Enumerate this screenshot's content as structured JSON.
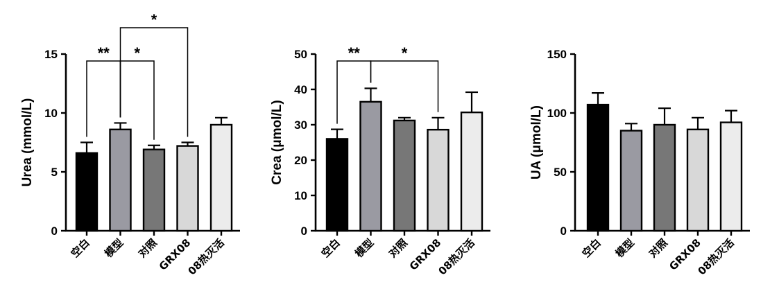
{
  "chart_data": [
    {
      "type": "bar",
      "ylabel": "Urea (mmol/L)",
      "categories": [
        "空白",
        "模型",
        "对照",
        "GRX08",
        "08热灭活"
      ],
      "values": [
        6.6,
        8.6,
        6.9,
        7.2,
        9.0
      ],
      "errors": [
        0.9,
        0.55,
        0.35,
        0.3,
        0.6
      ],
      "colors": [
        "#000000",
        "#9a9aa2",
        "#777777",
        "#d8d8d8",
        "#ececec"
      ],
      "ylim": [
        0,
        15
      ],
      "yticks": [
        0,
        5,
        10,
        15
      ],
      "significance": [
        {
          "from": 0,
          "to": 1,
          "label": "**"
        },
        {
          "from": 1,
          "to": 2,
          "label": "*"
        },
        {
          "from": 1,
          "to": 3,
          "label": "*"
        }
      ]
    },
    {
      "type": "bar",
      "ylabel": "Crea (μmol/L)",
      "categories": [
        "空白",
        "模型",
        "对照",
        "GRX08",
        "08热灭活"
      ],
      "values": [
        26.0,
        36.5,
        31.2,
        28.6,
        33.5
      ],
      "errors": [
        2.7,
        3.8,
        0.8,
        3.4,
        5.7
      ],
      "colors": [
        "#000000",
        "#9a9aa2",
        "#777777",
        "#d8d8d8",
        "#ececec"
      ],
      "ylim": [
        0,
        50
      ],
      "yticks": [
        0,
        10,
        20,
        30,
        40,
        50
      ],
      "significance": [
        {
          "from": 0,
          "to": 1,
          "label": "**"
        },
        {
          "from": 1,
          "to": 3,
          "label": "*"
        }
      ]
    },
    {
      "type": "bar",
      "ylabel": "UA (μmol/L)",
      "categories": [
        "空白",
        "模型",
        "对照",
        "GRX08",
        "08热灭活"
      ],
      "values": [
        107,
        85,
        90,
        86,
        92
      ],
      "errors": [
        10,
        6,
        14,
        10,
        10
      ],
      "colors": [
        "#000000",
        "#9a9aa2",
        "#777777",
        "#d8d8d8",
        "#ececec"
      ],
      "ylim": [
        0,
        150
      ],
      "yticks": [
        0,
        50,
        100,
        150
      ],
      "significance": []
    }
  ]
}
